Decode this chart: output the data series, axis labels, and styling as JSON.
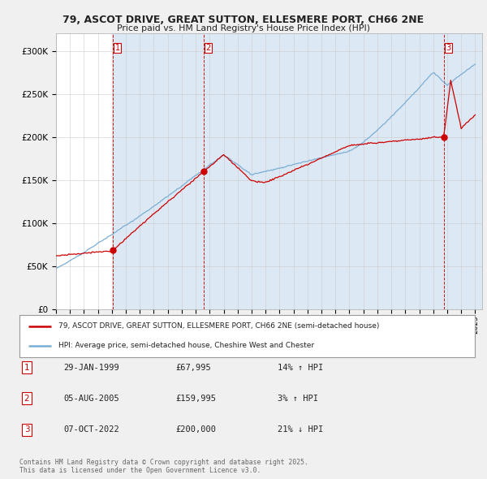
{
  "title": "79, ASCOT DRIVE, GREAT SUTTON, ELLESMERE PORT, CH66 2NE",
  "subtitle": "Price paid vs. HM Land Registry's House Price Index (HPI)",
  "ylim": [
    0,
    320000
  ],
  "yticks": [
    0,
    50000,
    100000,
    150000,
    200000,
    250000,
    300000
  ],
  "ytick_labels": [
    "£0",
    "£50K",
    "£100K",
    "£150K",
    "£200K",
    "£250K",
    "£300K"
  ],
  "trans_years": [
    1999.08,
    2005.58,
    2022.75
  ],
  "trans_prices": [
    67995,
    159995,
    200000
  ],
  "trans_labels": [
    "1",
    "2",
    "3"
  ],
  "legend_line1": "79, ASCOT DRIVE, GREAT SUTTON, ELLESMERE PORT, CH66 2NE (semi-detached house)",
  "legend_line2": "HPI: Average price, semi-detached house, Cheshire West and Chester",
  "table_rows": [
    {
      "num": "1",
      "date": "29-JAN-1999",
      "price": "£67,995",
      "hpi": "14% ↑ HPI"
    },
    {
      "num": "2",
      "date": "05-AUG-2005",
      "price": "£159,995",
      "hpi": "3% ↑ HPI"
    },
    {
      "num": "3",
      "date": "07-OCT-2022",
      "price": "£200,000",
      "hpi": "21% ↓ HPI"
    }
  ],
  "footer": "Contains HM Land Registry data © Crown copyright and database right 2025.\nThis data is licensed under the Open Government Licence v3.0.",
  "bg_color": "#f0f0f0",
  "plot_bg_color": "#ffffff",
  "fill_color": "#dde8f5",
  "red_color": "#cc0000",
  "blue_color": "#7aaed4",
  "vline_color": "#cc0000",
  "grid_color": "#cccccc",
  "start_year": 1995,
  "end_year": 2025
}
